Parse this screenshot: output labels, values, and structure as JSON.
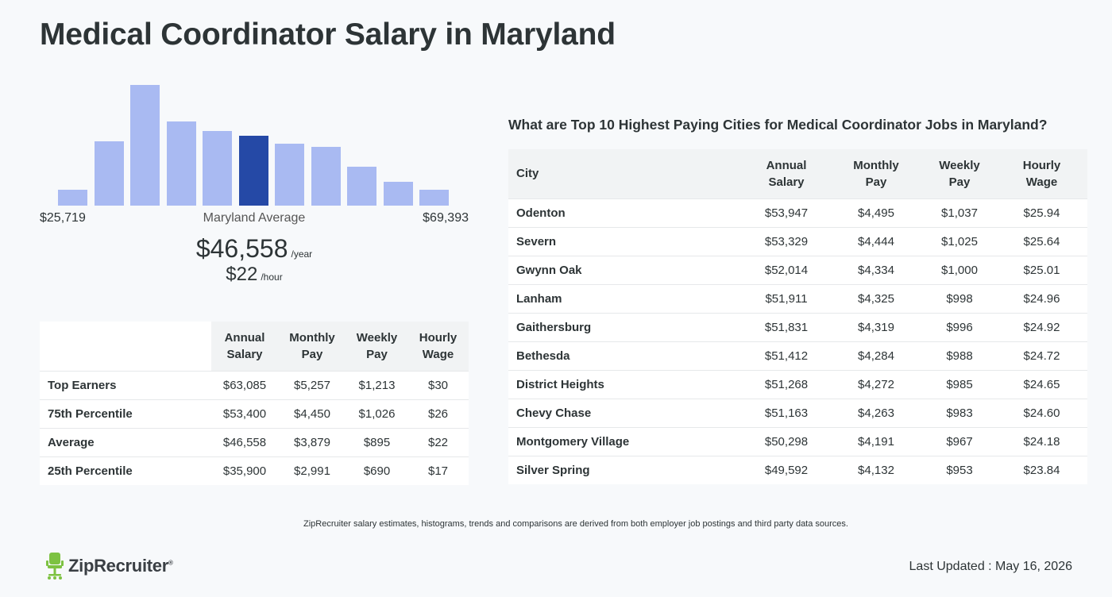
{
  "page": {
    "title": "Medical Coordinator Salary in Maryland"
  },
  "histogram": {
    "bar_color": "#a9baf2",
    "highlight_color": "#2549a6",
    "highlight_index": 5,
    "bar_levels": [
      0.13,
      0.53,
      1.0,
      0.7,
      0.62,
      0.58,
      0.51,
      0.49,
      0.32,
      0.2,
      0.13
    ],
    "min_label": "$25,719",
    "max_label": "$69,393",
    "average_label": "Maryland Average",
    "average_salary": "$46,558",
    "salary_unit": "/year",
    "average_hourly": "$22",
    "hourly_unit": "/hour"
  },
  "percentile_table": {
    "headers": [
      "Annual Salary",
      "Monthly Pay",
      "Weekly Pay",
      "Hourly Wage"
    ],
    "rows": [
      {
        "label": "Top Earners",
        "annual": "$63,085",
        "monthly": "$5,257",
        "weekly": "$1,213",
        "hourly": "$30"
      },
      {
        "label": "75th Percentile",
        "annual": "$53,400",
        "monthly": "$4,450",
        "weekly": "$1,026",
        "hourly": "$26"
      },
      {
        "label": "Average",
        "annual": "$46,558",
        "monthly": "$3,879",
        "weekly": "$895",
        "hourly": "$22"
      },
      {
        "label": "25th Percentile",
        "annual": "$35,900",
        "monthly": "$2,991",
        "weekly": "$690",
        "hourly": "$17"
      }
    ]
  },
  "cities": {
    "title": "What are Top 10 Highest Paying Cities for Medical Coordinator Jobs in Maryland?",
    "headers": [
      "City",
      "Annual Salary",
      "Monthly Pay",
      "Weekly Pay",
      "Hourly Wage"
    ],
    "rows": [
      {
        "city": "Odenton",
        "annual": "$53,947",
        "monthly": "$4,495",
        "weekly": "$1,037",
        "hourly": "$25.94"
      },
      {
        "city": "Severn",
        "annual": "$53,329",
        "monthly": "$4,444",
        "weekly": "$1,025",
        "hourly": "$25.64"
      },
      {
        "city": "Gwynn Oak",
        "annual": "$52,014",
        "monthly": "$4,334",
        "weekly": "$1,000",
        "hourly": "$25.01"
      },
      {
        "city": "Lanham",
        "annual": "$51,911",
        "monthly": "$4,325",
        "weekly": "$998",
        "hourly": "$24.96"
      },
      {
        "city": "Gaithersburg",
        "annual": "$51,831",
        "monthly": "$4,319",
        "weekly": "$996",
        "hourly": "$24.92"
      },
      {
        "city": "Bethesda",
        "annual": "$51,412",
        "monthly": "$4,284",
        "weekly": "$988",
        "hourly": "$24.72"
      },
      {
        "city": "District Heights",
        "annual": "$51,268",
        "monthly": "$4,272",
        "weekly": "$985",
        "hourly": "$24.65"
      },
      {
        "city": "Chevy Chase",
        "annual": "$51,163",
        "monthly": "$4,263",
        "weekly": "$983",
        "hourly": "$24.60"
      },
      {
        "city": "Montgomery Village",
        "annual": "$50,298",
        "monthly": "$4,191",
        "weekly": "$967",
        "hourly": "$24.18"
      },
      {
        "city": "Silver Spring",
        "annual": "$49,592",
        "monthly": "$4,132",
        "weekly": "$953",
        "hourly": "$23.84"
      }
    ]
  },
  "footer": {
    "disclaimer": "ZipRecruiter salary estimates, histograms, trends and comparisons are derived from both employer job postings and third party data sources.",
    "brand": "ZipRecruiter",
    "brand_mark": "®",
    "brand_color": "#7dc242",
    "last_updated": "Last Updated : May 16, 2026"
  }
}
